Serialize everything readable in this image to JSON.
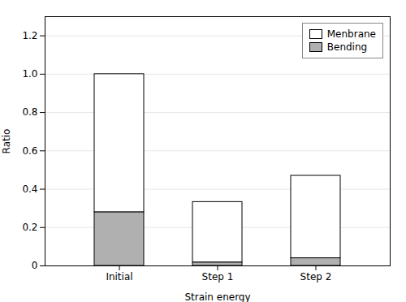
{
  "chart_data": {
    "type": "bar",
    "stacked": true,
    "categories": [
      "Initial",
      "Step 1",
      "Step 2"
    ],
    "series": [
      {
        "name": "Bending",
        "color": "#b0b0b0",
        "values": [
          0.28,
          0.018,
          0.04
        ]
      },
      {
        "name": "Menbrane",
        "color": "#ffffff",
        "values": [
          0.72,
          0.315,
          0.43
        ]
      }
    ],
    "xlabel": "Strain energy",
    "ylabel": "Ratio",
    "ylim": [
      0,
      1.3
    ],
    "yticks": [
      0,
      0.2,
      0.4,
      0.6,
      0.8,
      {
        "value": 1.0,
        "label": "1.0"
      },
      1.2
    ],
    "grid": true,
    "legend": "upper right"
  }
}
